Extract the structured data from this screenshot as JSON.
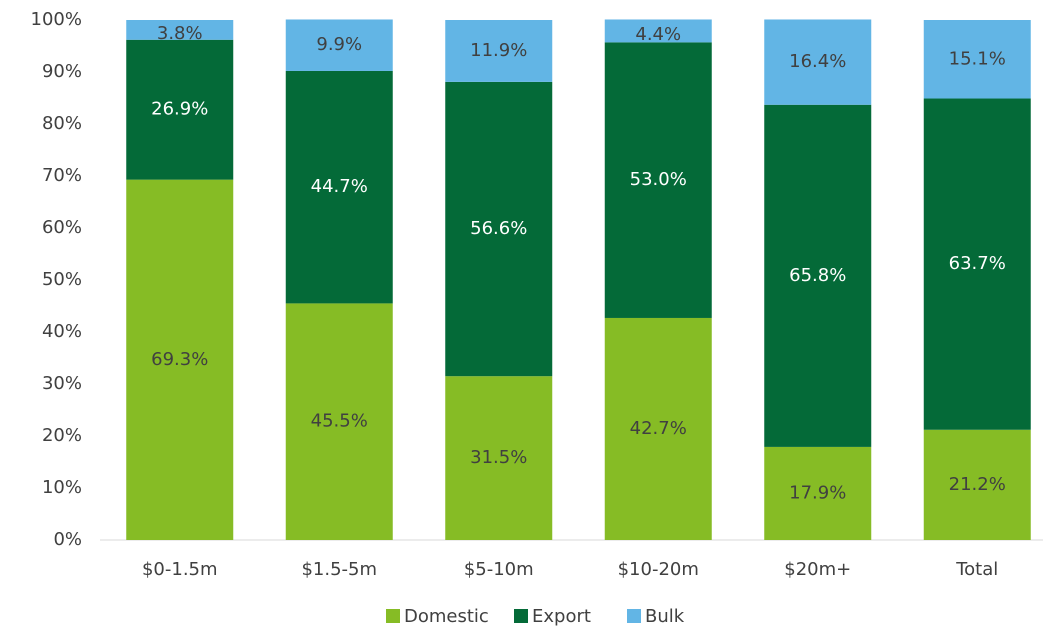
{
  "chart_data": {
    "type": "stacked_bar",
    "categories": [
      "$0-1.5m",
      "$1.5-5m",
      "$5-10m",
      "$10-20m",
      "$20m+",
      "Total"
    ],
    "series": [
      {
        "name": "Domestic",
        "color": "#86bc25",
        "values": [
          69.3,
          45.5,
          31.5,
          42.7,
          17.9,
          21.2
        ],
        "value_labels": [
          "69.3%",
          "45.5%",
          "31.5%",
          "42.7%",
          "17.9%",
          "21.2%"
        ]
      },
      {
        "name": "Export",
        "color": "#046a38",
        "values": [
          26.9,
          44.7,
          56.6,
          53.0,
          65.8,
          63.7
        ],
        "value_labels": [
          "26.9%",
          "44.7%",
          "56.6%",
          "53.0%",
          "65.8%",
          "63.7%"
        ]
      },
      {
        "name": "Bulk",
        "color": "#62b5e5",
        "values": [
          3.8,
          9.9,
          11.9,
          4.4,
          16.4,
          15.1
        ],
        "value_labels": [
          "3.8%",
          "9.9%",
          "11.9%",
          "4.4%",
          "16.4%",
          "15.1%"
        ]
      }
    ],
    "ylim": [
      0,
      100
    ],
    "yticks": [
      {
        "value": 0,
        "label": "0%"
      },
      {
        "value": 10,
        "label": "10%"
      },
      {
        "value": 20,
        "label": "20%"
      },
      {
        "value": 30,
        "label": "30%"
      },
      {
        "value": 40,
        "label": "40%"
      },
      {
        "value": 50,
        "label": "50%"
      },
      {
        "value": 60,
        "label": "60%"
      },
      {
        "value": 70,
        "label": "70%"
      },
      {
        "value": 80,
        "label": "80%"
      },
      {
        "value": 90,
        "label": "90%"
      },
      {
        "value": 100,
        "label": "100%"
      }
    ],
    "legend": "bottom"
  }
}
